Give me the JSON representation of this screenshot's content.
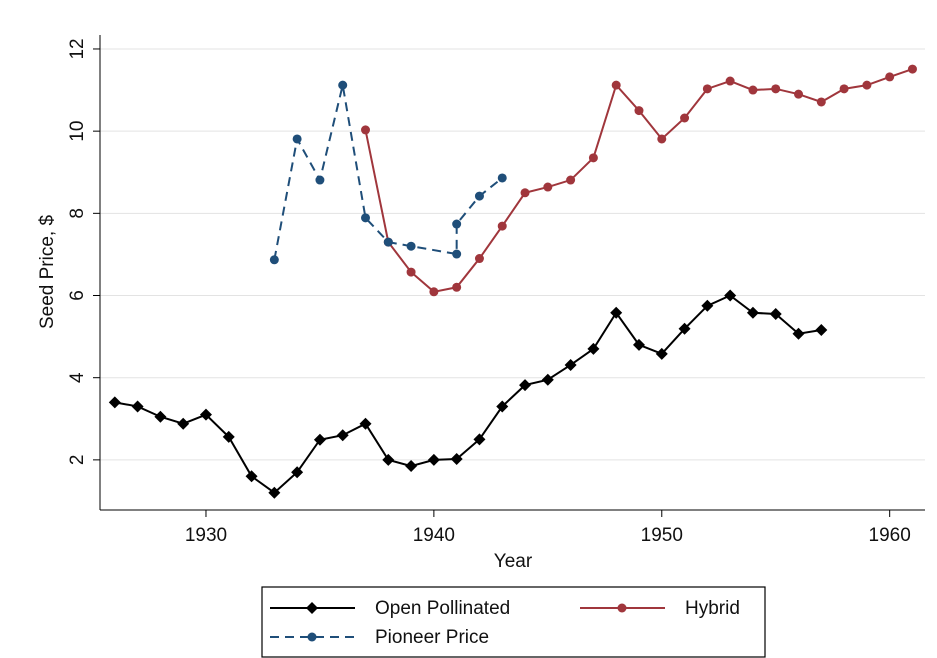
{
  "chart_data": {
    "type": "line",
    "xlabel": "Year",
    "ylabel": "Seed Price, $",
    "xlim": [
      1925.35,
      1961.55
    ],
    "ylim": [
      0.78,
      12.34
    ],
    "xticks": [
      1930,
      1940,
      1950,
      1960
    ],
    "yticks": [
      2,
      4,
      6,
      8,
      10,
      12
    ],
    "grid": true,
    "legend": "bottom",
    "series": [
      {
        "name": "Open Pollinated",
        "color": "#000000",
        "marker": "diamond",
        "line_style": "solid",
        "x": [
          1926,
          1927,
          1928,
          1929,
          1930,
          1931,
          1932,
          1933,
          1934,
          1935,
          1936,
          1937,
          1938,
          1939,
          1940,
          1941,
          1942,
          1943,
          1944,
          1945,
          1946,
          1947,
          1948,
          1949,
          1950,
          1951,
          1952,
          1953,
          1954,
          1955,
          1956,
          1957
        ],
        "values": [
          3.4,
          3.3,
          3.05,
          2.88,
          3.1,
          2.56,
          1.6,
          1.2,
          1.7,
          2.49,
          2.6,
          2.88,
          2.0,
          1.85,
          2.0,
          2.02,
          2.5,
          3.3,
          3.82,
          3.95,
          4.31,
          4.7,
          5.58,
          4.8,
          4.58,
          5.19,
          5.75,
          6.0,
          5.58,
          5.55,
          5.07,
          5.16
        ]
      },
      {
        "name": "Hybrid",
        "color": "#a0363c",
        "marker": "circle",
        "line_style": "solid",
        "x": [
          1937,
          1938,
          1939,
          1940,
          1941,
          1942,
          1943,
          1944,
          1945,
          1946,
          1947,
          1948,
          1949,
          1950,
          1951,
          1952,
          1953,
          1954,
          1955,
          1956,
          1957,
          1958,
          1959,
          1960,
          1961
        ],
        "values": [
          10.03,
          7.3,
          6.57,
          6.09,
          6.2,
          6.9,
          7.69,
          8.5,
          8.64,
          8.81,
          9.35,
          11.12,
          10.5,
          9.81,
          10.32,
          11.03,
          11.22,
          11.0,
          11.03,
          10.9,
          10.71,
          11.03,
          11.12,
          11.32,
          11.51
        ]
      },
      {
        "name": "Pioneer Price",
        "color": "#1f4e79",
        "marker": "circle",
        "line_style": "dashed",
        "x": [
          1933,
          1934,
          1935,
          1936,
          1937,
          1938,
          1939,
          1941,
          1941,
          1942,
          1943
        ],
        "values": [
          6.87,
          9.81,
          8.81,
          11.12,
          7.89,
          7.3,
          7.2,
          7.01,
          7.74,
          8.42,
          8.86
        ]
      }
    ]
  }
}
